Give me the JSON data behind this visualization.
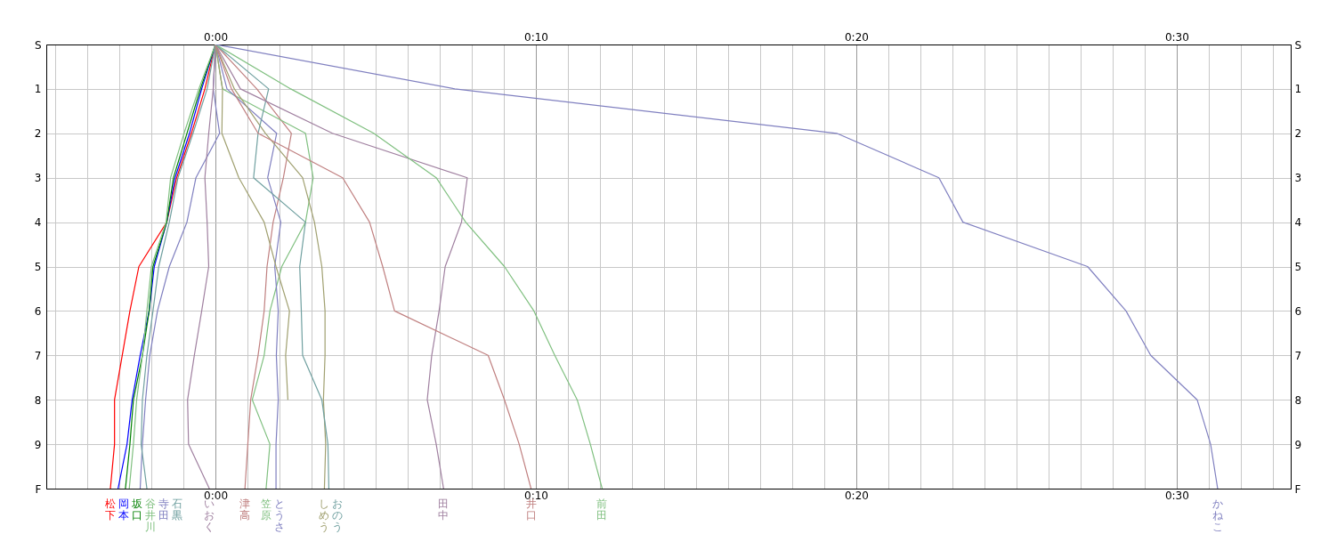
{
  "chart_data": {
    "type": "line",
    "xlim": [
      -5.28,
      33.56
    ],
    "ylim": [
      10,
      0
    ],
    "xticks": [
      {
        "value": -5,
        "label": null
      },
      {
        "value": -4,
        "label": null
      },
      {
        "value": -3,
        "label": null
      },
      {
        "value": -2,
        "label": null
      },
      {
        "value": -1,
        "label": null
      },
      {
        "value": 0,
        "label": "0:00"
      },
      {
        "value": 1,
        "label": null
      },
      {
        "value": 2,
        "label": null
      },
      {
        "value": 3,
        "label": null
      },
      {
        "value": 4,
        "label": null
      },
      {
        "value": 5,
        "label": null
      },
      {
        "value": 6,
        "label": null
      },
      {
        "value": 7,
        "label": null
      },
      {
        "value": 8,
        "label": null
      },
      {
        "value": 9,
        "label": null
      },
      {
        "value": 10,
        "label": "0:10"
      },
      {
        "value": 11,
        "label": null
      },
      {
        "value": 12,
        "label": null
      },
      {
        "value": 13,
        "label": null
      },
      {
        "value": 14,
        "label": null
      },
      {
        "value": 15,
        "label": null
      },
      {
        "value": 16,
        "label": null
      },
      {
        "value": 17,
        "label": null
      },
      {
        "value": 18,
        "label": null
      },
      {
        "value": 19,
        "label": null
      },
      {
        "value": 20,
        "label": "0:20"
      },
      {
        "value": 21,
        "label": null
      },
      {
        "value": 22,
        "label": null
      },
      {
        "value": 23,
        "label": null
      },
      {
        "value": 24,
        "label": null
      },
      {
        "value": 25,
        "label": null
      },
      {
        "value": 26,
        "label": null
      },
      {
        "value": 27,
        "label": null
      },
      {
        "value": 28,
        "label": null
      },
      {
        "value": 29,
        "label": null
      },
      {
        "value": 30,
        "label": "0:30"
      },
      {
        "value": 31,
        "label": null
      },
      {
        "value": 32,
        "label": null
      },
      {
        "value": 33,
        "label": null
      }
    ],
    "yticks": [
      {
        "value": 0,
        "label": "S"
      },
      1,
      2,
      3,
      4,
      5,
      6,
      7,
      8,
      9,
      {
        "value": 10,
        "label": "F"
      }
    ],
    "y2lim": [
      10,
      0
    ],
    "y2ticks": [
      {
        "value": 0,
        "label": "S"
      },
      1,
      2,
      3,
      4,
      5,
      6,
      7,
      8,
      9,
      {
        "value": 10,
        "label": "F"
      }
    ],
    "grid": true,
    "series": [
      {
        "name": "松下",
        "color": "#ff0000",
        "x": [
          0,
          -0.33,
          -0.75,
          -1.21,
          -1.52,
          -2.39,
          -2.67,
          -2.91,
          -3.15,
          -3.15,
          -3.28
        ],
        "values": [
          0,
          1,
          2,
          3,
          4,
          5,
          6,
          7,
          8,
          9,
          10
        ]
      },
      {
        "name": "岡本",
        "color": "#0000ff",
        "x": [
          0,
          -0.43,
          -0.81,
          -1.26,
          -1.52,
          -1.91,
          -2.07,
          -2.35,
          -2.6,
          -2.76,
          -3.04
        ],
        "values": [
          0,
          1,
          2,
          3,
          4,
          5,
          6,
          7,
          8,
          9,
          10
        ]
      },
      {
        "name": "坂口",
        "color": "#008000",
        "x": [
          0,
          -0.47,
          -0.89,
          -1.31,
          -1.52,
          -1.95,
          -2.07,
          -2.28,
          -2.56,
          -2.67,
          -2.81
        ],
        "values": [
          0,
          1,
          2,
          3,
          4,
          5,
          6,
          7,
          8,
          9,
          10
        ]
      },
      {
        "name": "谷井川",
        "color": "#80c080",
        "x": [
          0,
          -0.52,
          -0.98,
          -1.4,
          -1.54,
          -2.0,
          -2.14,
          -2.28,
          -2.46,
          -2.56,
          -2.69
        ],
        "values": [
          0,
          1,
          2,
          3,
          4,
          5,
          6,
          7,
          8,
          9,
          10
        ]
      },
      {
        "name": "寺田",
        "color": "#8080c0",
        "x": [
          0,
          -0.07,
          0.13,
          -0.61,
          -0.89,
          -1.44,
          -1.81,
          -2.05,
          -2.18,
          -2.28,
          -2.35
        ],
        "values": [
          0,
          1,
          2,
          3,
          4,
          5,
          6,
          7,
          8,
          9,
          10
        ]
      },
      {
        "name": "石黒",
        "color": "#70a0a0",
        "x": [
          0,
          -0.26,
          -0.7,
          -1.17,
          -1.44,
          -1.77,
          -1.95,
          -2.14,
          -2.28,
          -2.32,
          -2.14
        ],
        "values": [
          0,
          1,
          2,
          3,
          4,
          5,
          6,
          7,
          8,
          9,
          10
        ]
      },
      {
        "name": "いおく",
        "color": "#a080a0",
        "x": [
          0,
          -0.07,
          -0.21,
          -0.33,
          -0.26,
          -0.21,
          -0.43,
          -0.66,
          -0.87,
          -0.84,
          -0.19
        ],
        "values": [
          0,
          1,
          2,
          3,
          4,
          5,
          6,
          7,
          8,
          9,
          10
        ]
      },
      {
        "name": "津高",
        "color": "#c08080",
        "x": [
          0,
          1.29,
          2.37,
          2.12,
          1.8,
          1.61,
          1.52,
          1.33,
          1.1,
          1.01,
          0.92
        ],
        "values": [
          0,
          1,
          2,
          3,
          4,
          5,
          6,
          7,
          8,
          9,
          10
        ]
      },
      {
        "name": "笠原",
        "color": "#80c080",
        "x": [
          0,
          0.22,
          2.81,
          3.05,
          2.81,
          2.07,
          1.7,
          1.52,
          1.15,
          1.7,
          1.58
        ],
        "values": [
          0,
          1,
          2,
          3,
          4,
          5,
          6,
          7,
          8,
          9,
          10
        ]
      },
      {
        "name": "とうさ",
        "color": "#8080c0",
        "x": [
          0,
          0.36,
          1.91,
          1.63,
          2.04,
          1.85,
          1.96,
          1.9,
          1.96,
          1.89,
          1.89
        ],
        "values": [
          0,
          1,
          2,
          3,
          4,
          5,
          6,
          7,
          8,
          9,
          10
        ]
      },
      {
        "color": "#a0a070",
        "x": [
          0,
          0.22,
          0.2,
          0.73,
          1.52,
          1.89,
          2.31,
          2.19,
          2.26,
          null,
          null
        ],
        "values": [
          0,
          1,
          2,
          3,
          4,
          5,
          6,
          7,
          8,
          null,
          null
        ]
      },
      {
        "name": "しめう",
        "color": "#a0a070",
        "x": [
          0,
          0.59,
          1.56,
          2.72,
          3.09,
          3.32,
          3.42,
          3.42,
          3.37,
          3.44,
          3.4
        ],
        "values": [
          0,
          1,
          2,
          3,
          4,
          5,
          6,
          7,
          8,
          9,
          10
        ]
      },
      {
        "name": "おのう",
        "color": "#70a0a0",
        "x": [
          0,
          1.66,
          1.33,
          1.19,
          2.81,
          2.63,
          2.68,
          2.72,
          3.32,
          3.51,
          3.54
        ],
        "values": [
          0,
          1,
          2,
          3,
          4,
          5,
          6,
          7,
          8,
          9,
          10
        ]
      },
      {
        "name": "田中",
        "color": "#a080a0",
        "x": [
          0,
          0.78,
          3.65,
          7.86,
          7.68,
          7.17,
          6.98,
          6.75,
          6.61,
          6.89,
          7.12
        ],
        "values": [
          0,
          1,
          2,
          3,
          4,
          5,
          6,
          7,
          8,
          9,
          10
        ]
      },
      {
        "name": "井口",
        "color": "#c08080",
        "x": [
          0,
          0.5,
          1.33,
          3.97,
          4.81,
          5.22,
          5.59,
          8.51,
          9.02,
          9.48,
          9.85
        ],
        "values": [
          0,
          1,
          2,
          3,
          4,
          5,
          6,
          7,
          8,
          9,
          10
        ]
      },
      {
        "name": "前田",
        "color": "#80c080",
        "x": [
          0,
          2.35,
          4.94,
          6.89,
          7.81,
          9.02,
          9.94,
          10.59,
          11.29,
          11.7,
          12.07
        ],
        "values": [
          0,
          1,
          2,
          3,
          4,
          5,
          6,
          7,
          8,
          9,
          10
        ]
      },
      {
        "name": "かねこ",
        "color": "#8080c0",
        "x": [
          0,
          7.47,
          19.39,
          22.58,
          23.33,
          27.22,
          28.42,
          29.19,
          30.64,
          31.06,
          31.28
        ],
        "values": [
          0,
          1,
          2,
          3,
          4,
          5,
          6,
          7,
          8,
          9,
          10
        ]
      }
    ]
  }
}
